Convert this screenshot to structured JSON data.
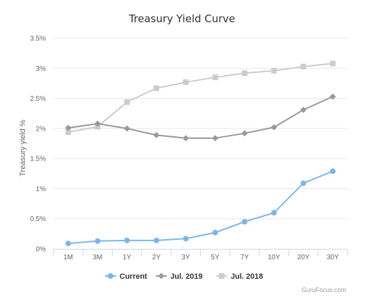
{
  "chart_data": {
    "type": "line",
    "title": "Treasury Yield Curve",
    "xlabel": "",
    "ylabel": "Treasury yield %",
    "categories": [
      "1M",
      "3M",
      "1Y",
      "2Y",
      "3Y",
      "5Y",
      "7Y",
      "10Y",
      "20Y",
      "30Y"
    ],
    "yticks": [
      "0%",
      "0.5%",
      "1%",
      "1.5%",
      "2%",
      "2.5%",
      "3%",
      "3.5%"
    ],
    "ylim": [
      0,
      3.5
    ],
    "grid": true,
    "legend_position": "bottom",
    "series": [
      {
        "name": "Current",
        "color": "#7cb5ec",
        "marker": "circle",
        "values": [
          0.09,
          0.13,
          0.14,
          0.14,
          0.17,
          0.27,
          0.45,
          0.6,
          1.09,
          1.29
        ]
      },
      {
        "name": "Jul. 2019",
        "color": "#999999",
        "marker": "diamond",
        "values": [
          2.01,
          2.08,
          2.0,
          1.89,
          1.84,
          1.84,
          1.92,
          2.02,
          2.31,
          2.53
        ]
      },
      {
        "name": "Jul. 2018",
        "color": "#cccccc",
        "marker": "square",
        "values": [
          1.94,
          2.03,
          2.44,
          2.67,
          2.77,
          2.85,
          2.92,
          2.96,
          3.03,
          3.08
        ]
      }
    ],
    "credit": "GuruFocus.com"
  }
}
